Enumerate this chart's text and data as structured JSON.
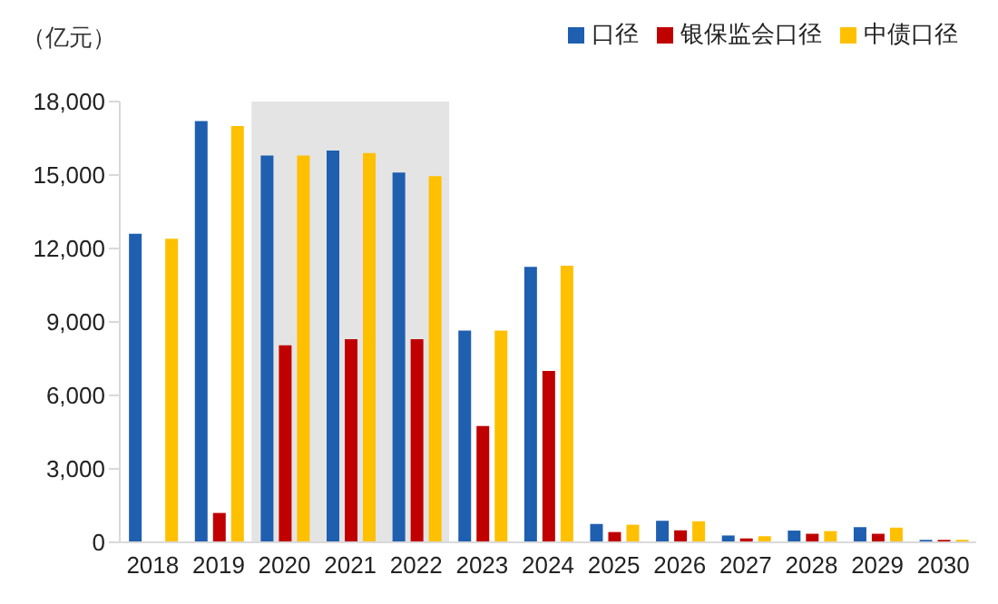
{
  "chart_data": {
    "type": "bar",
    "ylabel": "（亿元）",
    "categories": [
      "2018",
      "2019",
      "2020",
      "2021",
      "2022",
      "2023",
      "2024",
      "2025",
      "2026",
      "2027",
      "2028",
      "2029",
      "2030"
    ],
    "series": [
      {
        "name": "口径",
        "color": "#1f5fb0",
        "values": [
          12600,
          17200,
          15800,
          16000,
          15100,
          8650,
          11250,
          750,
          880,
          280,
          480,
          620,
          100
        ]
      },
      {
        "name": "银保监会口径",
        "color": "#c00000",
        "values": [
          null,
          1200,
          8050,
          8300,
          8300,
          4750,
          7000,
          420,
          490,
          160,
          350,
          350,
          100
        ]
      },
      {
        "name": "中债口径",
        "color": "#ffc000",
        "values": [
          12400,
          17000,
          15800,
          15900,
          14950,
          8650,
          11300,
          720,
          860,
          250,
          460,
          600,
          100
        ]
      }
    ],
    "ylim": [
      0,
      18000
    ],
    "yticks": [
      {
        "value": 0,
        "label": "0"
      },
      {
        "value": 3000,
        "label": "3,000"
      },
      {
        "value": 6000,
        "label": "6,000"
      },
      {
        "value": 9000,
        "label": "9,000"
      },
      {
        "value": 12000,
        "label": "12,000"
      },
      {
        "value": 15000,
        "label": "15,000"
      },
      {
        "value": 18000,
        "label": "18,000"
      }
    ],
    "bands": [
      {
        "axis": "x",
        "from": "2020",
        "to": "2022",
        "color": "#e4e4e4"
      }
    ],
    "grid": false,
    "legend": "top right"
  }
}
